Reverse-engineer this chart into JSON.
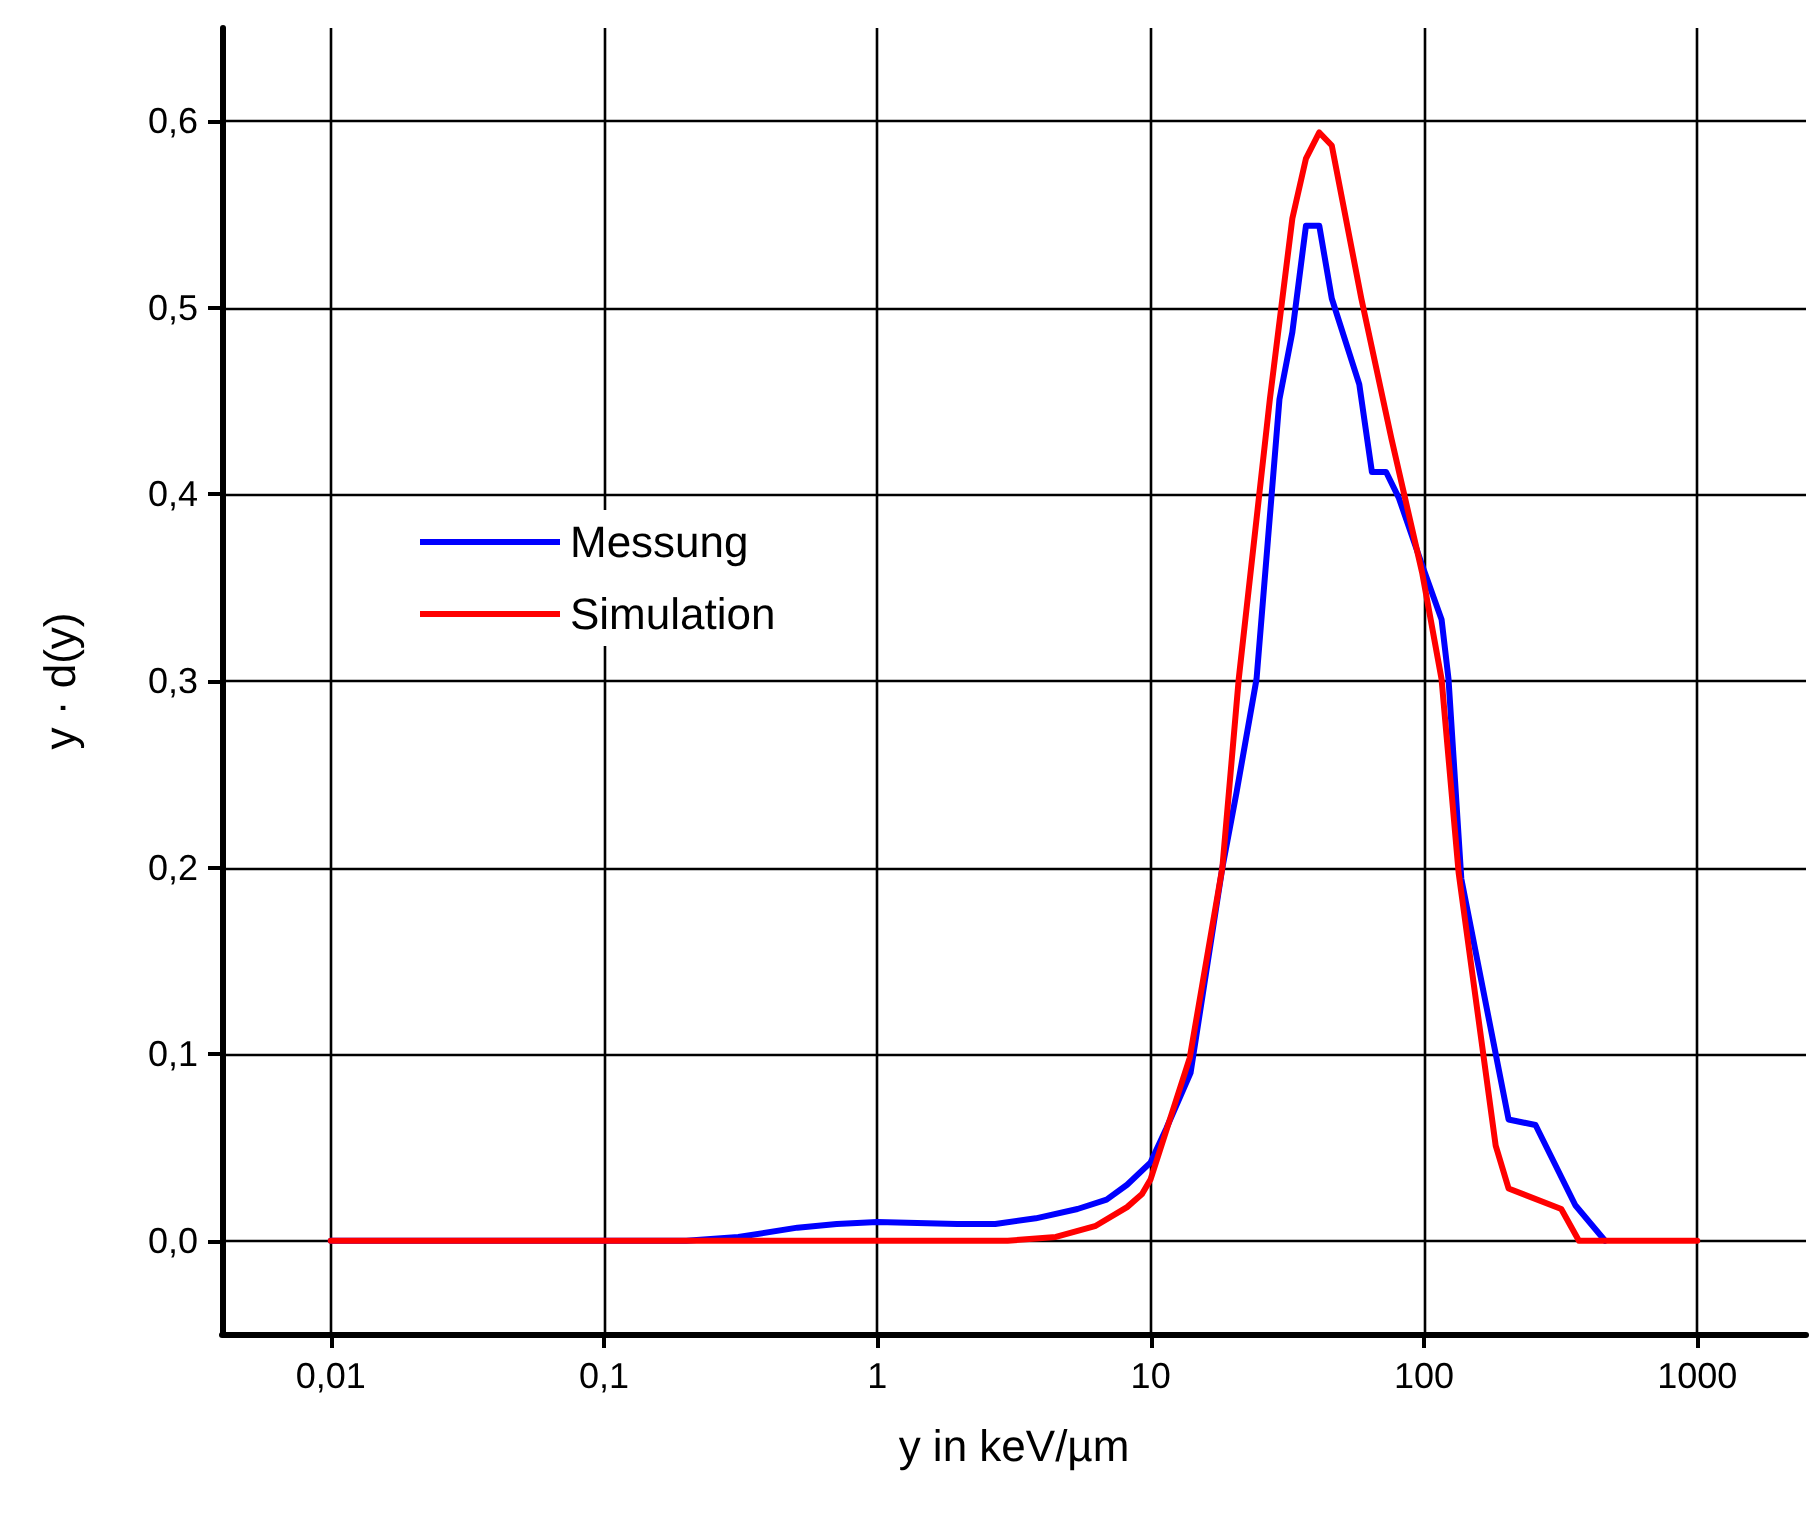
{
  "chart_data": {
    "type": "line",
    "xlabel": "y in keV/µm",
    "ylabel": "y · d(y)",
    "log": "x",
    "grid": true,
    "legend": "left",
    "marker": "none",
    "line_style": "solid",
    "xlim": [
      0.004,
      2500
    ],
    "xticks": [
      {
        "value": 0.01,
        "label": "0,01"
      },
      {
        "value": 0.1,
        "label": "0,1"
      },
      1,
      10,
      100,
      1000
    ],
    "ylim": [
      -0.05,
      0.65
    ],
    "yticks": [
      {
        "value": 0,
        "label": "0,0"
      },
      {
        "value": 0.1,
        "label": "0,1"
      },
      {
        "value": 0.2,
        "label": "0,2"
      },
      {
        "value": 0.3,
        "label": "0,3"
      },
      {
        "value": 0.4,
        "label": "0,4"
      },
      {
        "value": 0.5,
        "label": "0,5"
      },
      {
        "value": 0.6,
        "label": "0,6"
      }
    ],
    "series": [
      {
        "name": "Messung",
        "color": "#0000ff",
        "x": [
          0.01,
          0.2,
          0.31,
          0.51,
          0.71,
          1,
          1.96,
          2.7,
          3.8,
          5.4,
          6.9,
          8.2,
          10,
          11.4,
          14,
          18.3,
          20.6,
          24.4,
          29.6,
          33,
          37,
          41.4,
          46,
          58,
          64.5,
          72.7,
          81,
          98.5,
          116,
          123,
          137,
          204,
          256,
          358,
          460
        ],
        "values": [
          0,
          0,
          0.002,
          0.007,
          0.009,
          0.01,
          0.009,
          0.009,
          0.012,
          0.017,
          0.022,
          0.03,
          0.042,
          0.06,
          0.09,
          0.2,
          0.24,
          0.301,
          0.451,
          0.487,
          0.544,
          0.544,
          0.505,
          0.459,
          0.412,
          0.412,
          0.398,
          0.362,
          0.333,
          0.301,
          0.194,
          0.065,
          0.062,
          0.019,
          0
        ]
      },
      {
        "name": "Simulation",
        "color": "#ff0000",
        "x": [
          0.01,
          3,
          4.5,
          6.3,
          8.2,
          9.3,
          10,
          13.9,
          18.3,
          21,
          27.3,
          33,
          37,
          41.4,
          46,
          59,
          76,
          98.5,
          116,
          134,
          183,
          204,
          318,
          369,
          1000
        ],
        "values": [
          0,
          0,
          0.002,
          0.008,
          0.018,
          0.025,
          0.033,
          0.098,
          0.2,
          0.301,
          0.451,
          0.548,
          0.58,
          0.594,
          0.587,
          0.505,
          0.43,
          0.358,
          0.301,
          0.197,
          0.051,
          0.028,
          0.017,
          0,
          0
        ]
      }
    ]
  }
}
